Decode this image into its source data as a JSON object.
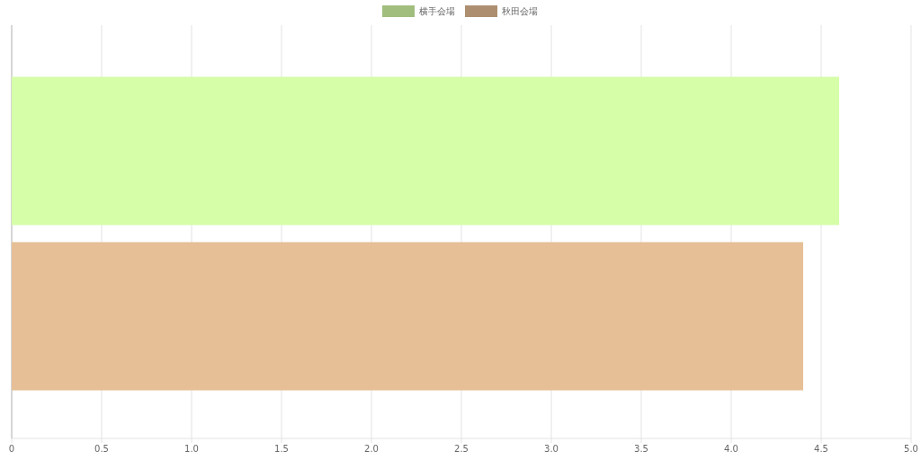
{
  "chart_data": {
    "type": "bar",
    "orientation": "horizontal",
    "categories": [
      null
    ],
    "series": [
      {
        "name": "横手会場",
        "color": "#d6fda8",
        "values": [
          4.6
        ]
      },
      {
        "name": "秋田会場",
        "color": "#e6bf96",
        "values": [
          4.4
        ]
      }
    ],
    "xlim": [
      0,
      5
    ],
    "xticks": [
      0,
      {
        "value": 0.5,
        "label": "0.5"
      },
      {
        "value": 1,
        "label": "1.0"
      },
      {
        "value": 1.5,
        "label": "1.5"
      },
      {
        "value": 2,
        "label": "2.0"
      },
      {
        "value": 2.5,
        "label": "2.5"
      },
      {
        "value": 3,
        "label": "3.0"
      },
      {
        "value": 3.5,
        "label": "3.5"
      },
      {
        "value": 4,
        "label": "4.0"
      },
      {
        "value": 4.5,
        "label": "4.5"
      },
      {
        "value": 5,
        "label": "5.0"
      }
    ],
    "grid": "x",
    "legend": "top"
  }
}
